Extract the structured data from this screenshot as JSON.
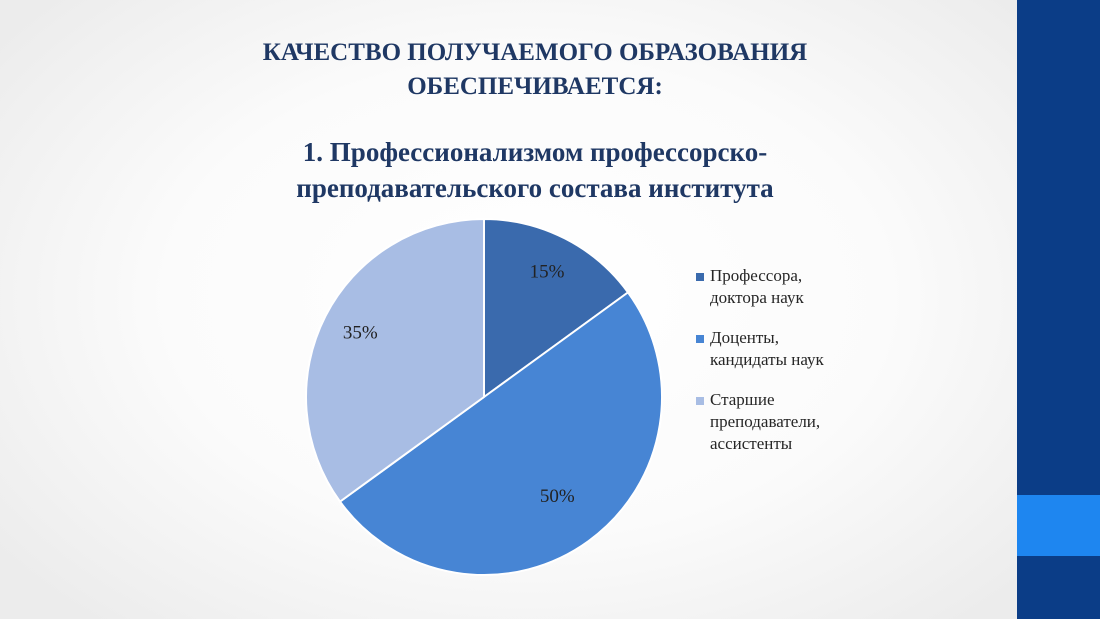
{
  "slide": {
    "heading_lines": [
      "КАЧЕСТВО ПОЛУЧАЕМОГО ОБРАЗОВАНИЯ",
      "ОБЕСПЕЧИВАЕТСЯ:"
    ],
    "accent_colors": {
      "sidebar": "#0b3d87",
      "sidebar_highlight": "#1e86f0",
      "heading_text": "#1f3864"
    }
  },
  "chart_data": {
    "type": "pie",
    "title_lines": [
      "1. Профессионализмом профессорско-",
      "преподавательского состава института"
    ],
    "categories": [
      "Профессора,\nдоктора наук",
      "Доценты,\nкандидаты наук",
      "Старшие\nпреподаватели,\nассистенты"
    ],
    "values": [
      15,
      50,
      35
    ],
    "labels": [
      "15%",
      "50%",
      "35%"
    ],
    "colors": [
      "#3a6aad",
      "#4785d4",
      "#a8bde4"
    ],
    "legend_position": "right"
  }
}
